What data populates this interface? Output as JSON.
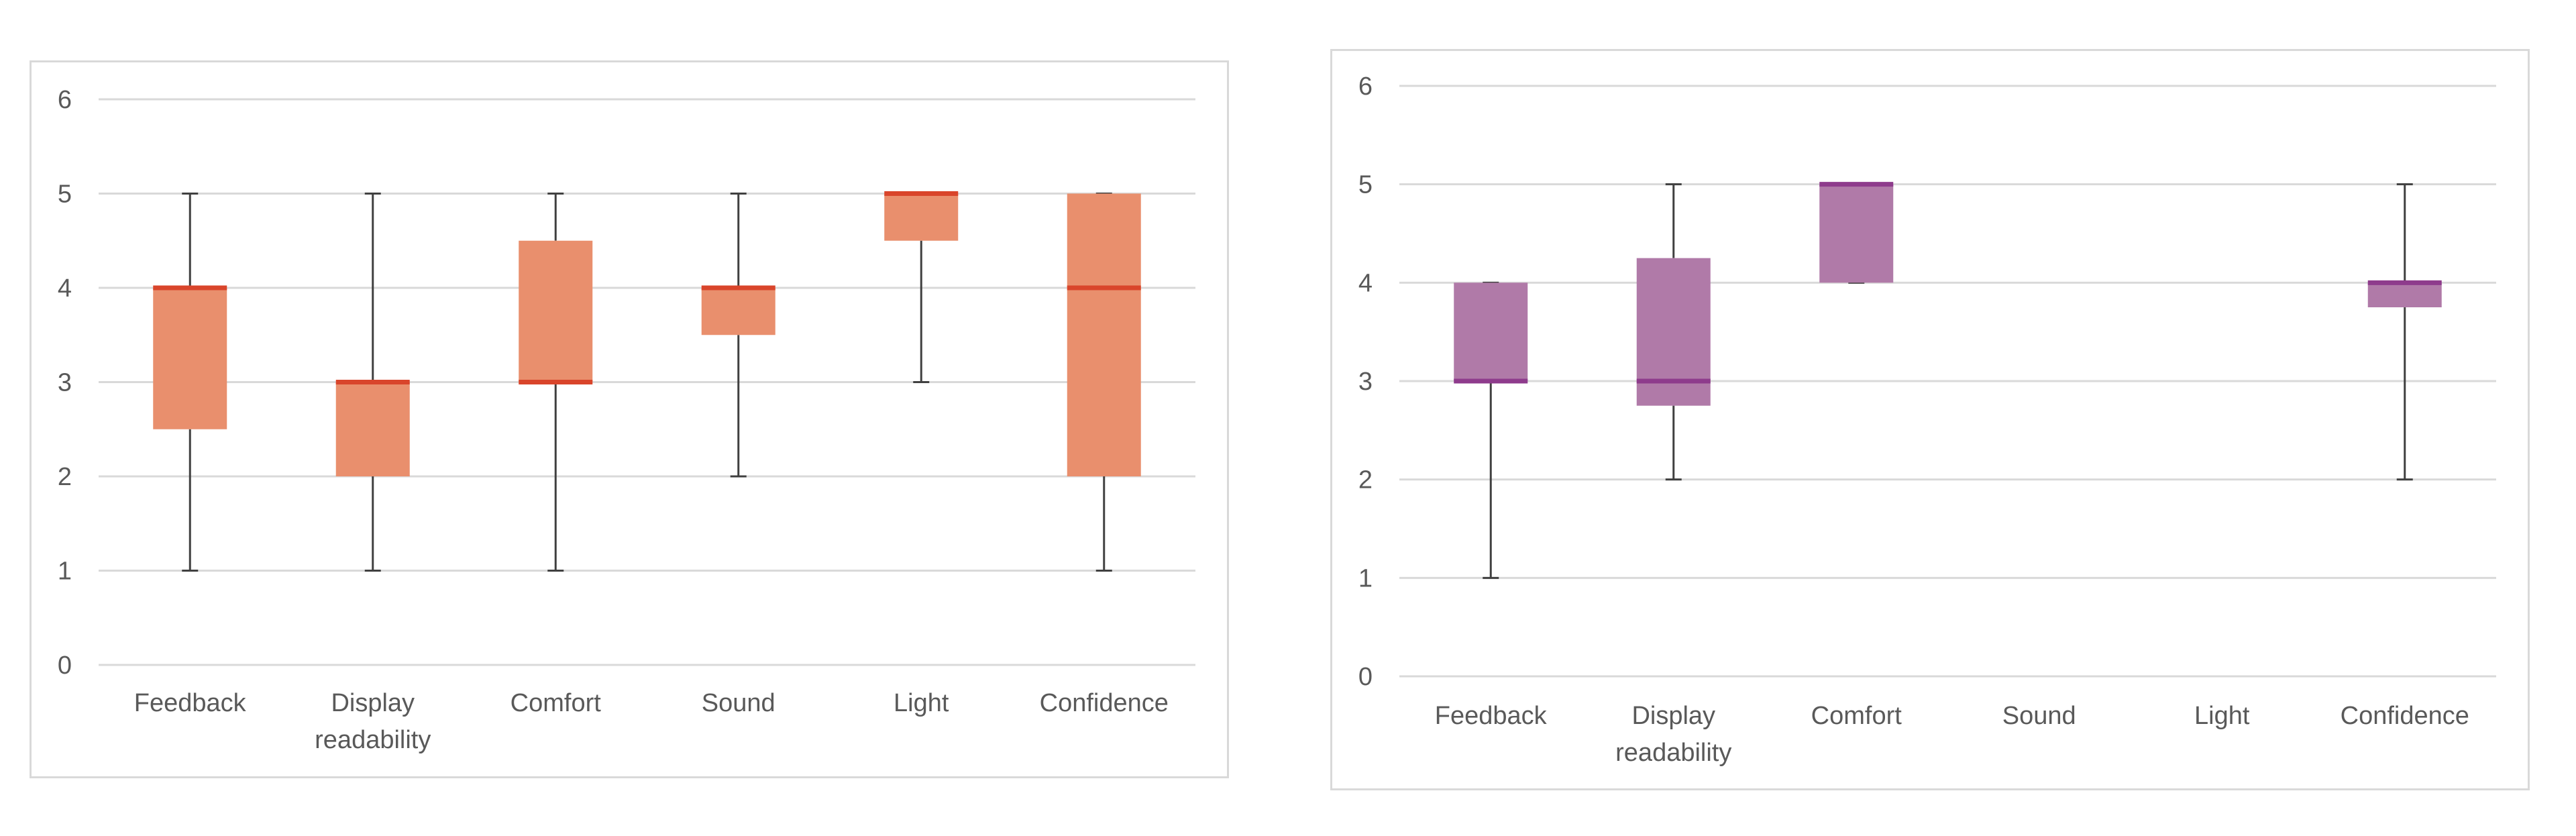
{
  "chart_data": [
    {
      "type": "box",
      "title": "",
      "xlabel": "",
      "ylabel": "",
      "ylim": [
        0,
        6
      ],
      "yticks": [
        0,
        1,
        2,
        3,
        4,
        5,
        6
      ],
      "grid": true,
      "color": "#e98f6d",
      "median_color": "#d9452b",
      "categories": [
        "Feedback",
        "Display\nreadability",
        "Comfort",
        "Sound",
        "Light",
        "Confidence"
      ],
      "boxes": [
        {
          "min": 1,
          "q1": 2.5,
          "median": 4,
          "q3": 4,
          "max": 5
        },
        {
          "min": 1,
          "q1": 2,
          "median": 3,
          "q3": 3,
          "max": 5
        },
        {
          "min": 1,
          "q1": 3,
          "median": 3,
          "q3": 4.5,
          "max": 5
        },
        {
          "min": 2,
          "q1": 3.5,
          "median": 4,
          "q3": 4,
          "max": 5
        },
        {
          "min": 3,
          "q1": 4.5,
          "median": 5,
          "q3": 5,
          "max": 5
        },
        {
          "min": 1,
          "q1": 2,
          "median": 4,
          "q3": 5,
          "max": 5
        }
      ]
    },
    {
      "type": "box",
      "title": "",
      "xlabel": "",
      "ylabel": "",
      "ylim": [
        0,
        6
      ],
      "yticks": [
        0,
        1,
        2,
        3,
        4,
        5,
        6
      ],
      "grid": true,
      "color": "#b07aa8",
      "median_color": "#8e3b8c",
      "categories": [
        "Feedback",
        "Display\nreadability",
        "Comfort",
        "Sound",
        "Light",
        "Confidence"
      ],
      "boxes": [
        {
          "min": 1,
          "q1": 3,
          "median": 3,
          "q3": 4,
          "max": 4
        },
        {
          "min": 2,
          "q1": 2.75,
          "median": 3,
          "q3": 4.25,
          "max": 5
        },
        {
          "min": 4,
          "q1": 4,
          "median": 5,
          "q3": 5,
          "max": 5
        },
        null,
        null,
        {
          "min": 2,
          "q1": 3.75,
          "median": 4,
          "q3": 4,
          "max": 5
        }
      ]
    }
  ]
}
